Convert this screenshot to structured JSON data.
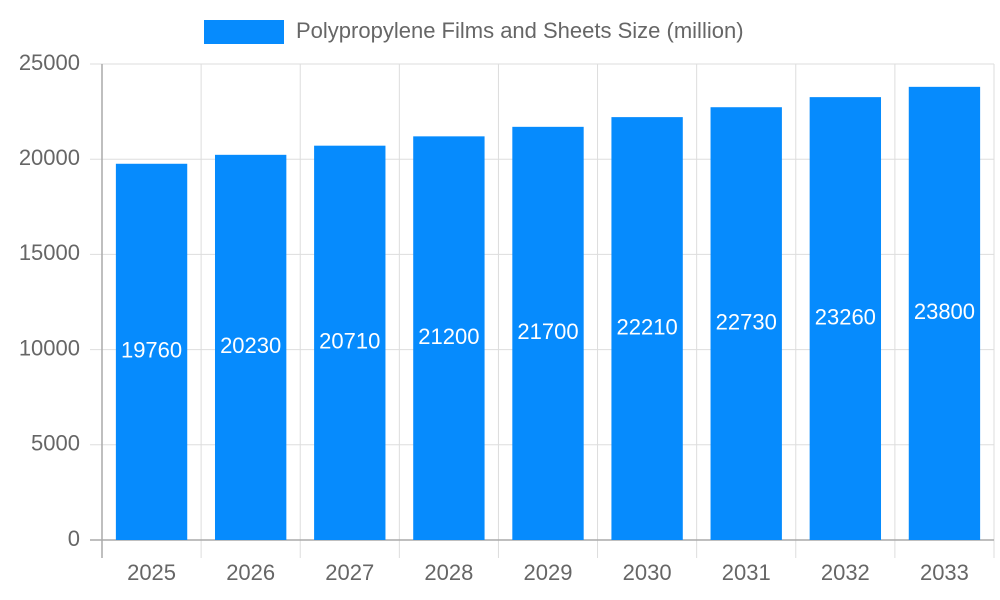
{
  "chart_data": {
    "type": "bar",
    "categories": [
      "2025",
      "2026",
      "2027",
      "2028",
      "2029",
      "2030",
      "2031",
      "2032",
      "2033"
    ],
    "series": [
      {
        "name": "Polypropylene Films and Sheets Size (million)",
        "color": "#068bfd",
        "values": [
          19760,
          20230,
          20710,
          21200,
          21700,
          22210,
          22730,
          23260,
          23800
        ]
      }
    ],
    "ylim": [
      0,
      25000
    ],
    "yticks": [
      0,
      5000,
      10000,
      15000,
      20000,
      25000
    ],
    "grid": true,
    "legend": "top"
  }
}
